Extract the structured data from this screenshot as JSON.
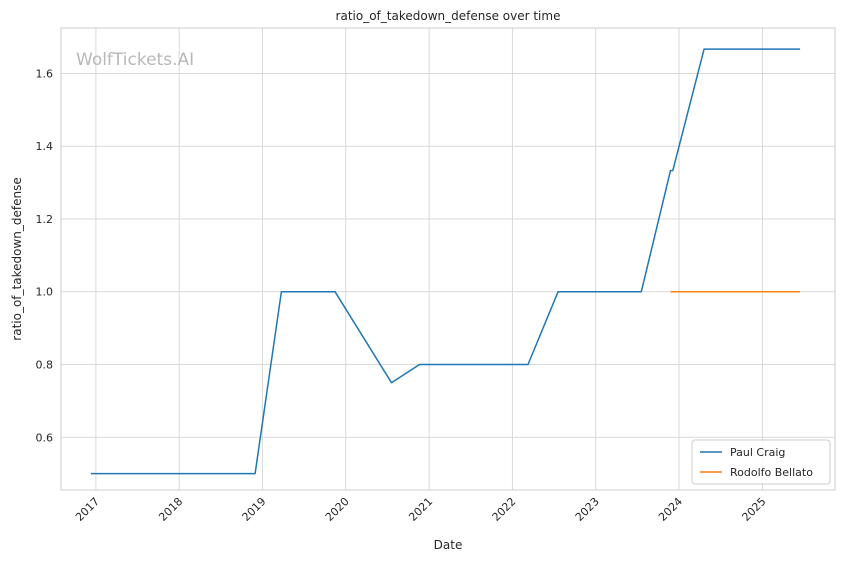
{
  "watermark": "WolfTickets.AI",
  "chart_data": {
    "type": "line",
    "title": "ratio_of_takedown_defense over time",
    "xlabel": "Date",
    "ylabel": "ratio_of_takedown_defense",
    "x_axis_type": "date",
    "xlim": [
      "2016-08-01",
      "2025-11-15"
    ],
    "ylim": [
      0.455,
      1.725
    ],
    "x_ticks": [
      "2017-01-01",
      "2018-01-01",
      "2019-01-01",
      "2020-01-01",
      "2021-01-01",
      "2022-01-01",
      "2023-01-01",
      "2024-01-01",
      "2025-01-01"
    ],
    "x_tick_labels": [
      "2017",
      "2018",
      "2019",
      "2020",
      "2021",
      "2022",
      "2023",
      "2024",
      "2025"
    ],
    "y_ticks": [
      0.6,
      0.8,
      1.0,
      1.2,
      1.4,
      1.6
    ],
    "y_tick_labels": [
      "0.6",
      "0.8",
      "1.0",
      "1.2",
      "1.4",
      "1.6"
    ],
    "grid": true,
    "legend_position": "bottom-right",
    "colors": {
      "Paul Craig": "#1f77b4",
      "Rodolfo Bellato": "#ff7f0e"
    },
    "series": [
      {
        "name": "Paul Craig",
        "points": [
          {
            "x": "2016-12-10",
            "y": 0.5
          },
          {
            "x": "2018-11-30",
            "y": 0.5
          },
          {
            "x": "2019-03-25",
            "y": 1.0
          },
          {
            "x": "2019-11-15",
            "y": 1.0
          },
          {
            "x": "2020-07-20",
            "y": 0.75
          },
          {
            "x": "2020-11-20",
            "y": 0.8
          },
          {
            "x": "2022-03-10",
            "y": 0.8
          },
          {
            "x": "2022-07-20",
            "y": 1.0
          },
          {
            "x": "2023-07-20",
            "y": 1.0
          },
          {
            "x": "2023-11-25",
            "y": 1.333
          },
          {
            "x": "2023-12-05",
            "y": 1.333
          },
          {
            "x": "2024-04-20",
            "y": 1.667
          },
          {
            "x": "2025-06-15",
            "y": 1.667
          }
        ]
      },
      {
        "name": "Rodolfo Bellato",
        "points": [
          {
            "x": "2023-11-25",
            "y": 1.0
          },
          {
            "x": "2025-06-15",
            "y": 1.0
          }
        ]
      }
    ]
  }
}
